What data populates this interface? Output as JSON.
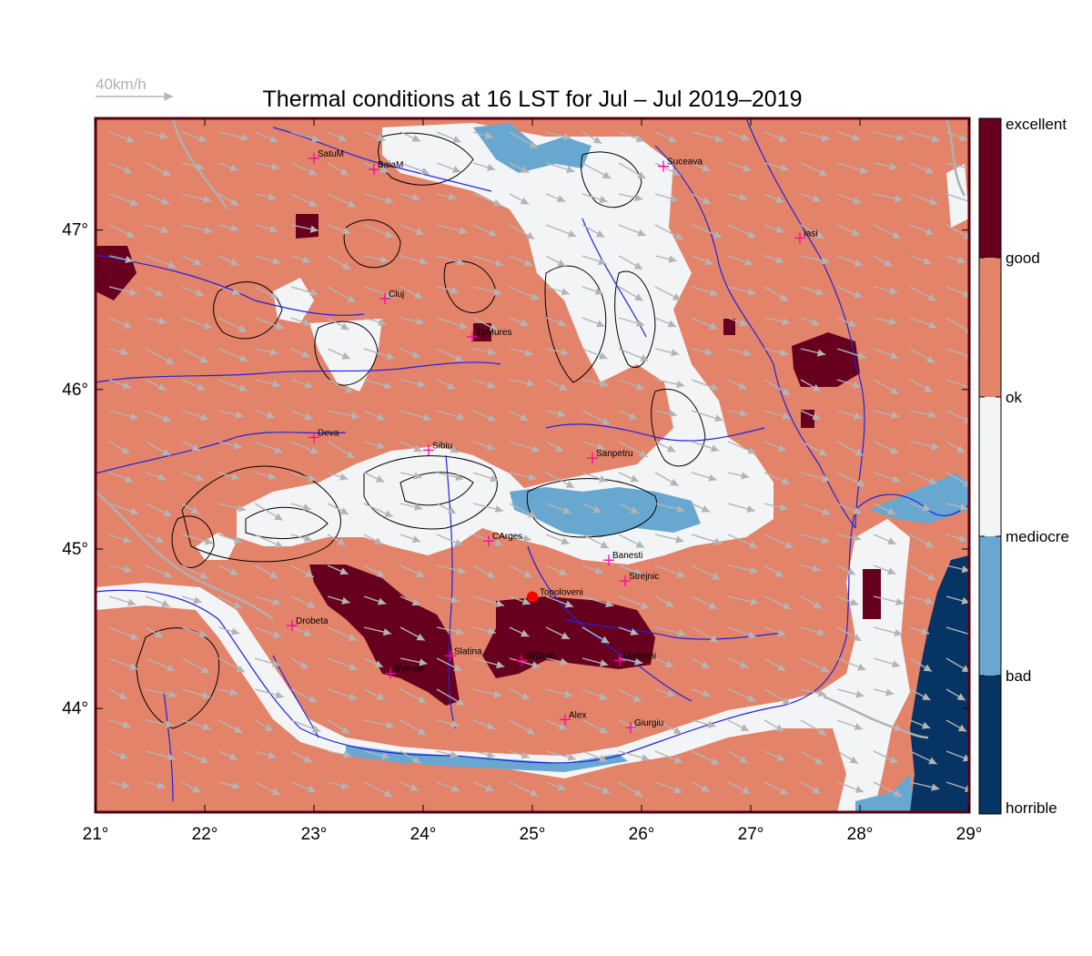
{
  "title": "Thermal conditions at 16 LST for Jul – Jul  2019–2019",
  "wind_scale": {
    "label": "40km/h"
  },
  "colors": {
    "excellent": "#67001f",
    "good": "#e3836a",
    "ok": "#f3f4f6",
    "mediocre": "#68a8d0",
    "horrible": "#063464",
    "rivers": "#2222dd",
    "arrows": "#b4b4b4",
    "frame": "#5a0010",
    "city_marker": "#ff00aa",
    "highlight_point": "#ff0000"
  },
  "x_axis": {
    "ticks": [
      "21°",
      "22°",
      "23°",
      "24°",
      "25°",
      "26°",
      "27°",
      "28°",
      "29°"
    ],
    "range": [
      21,
      29
    ]
  },
  "y_axis": {
    "ticks": [
      "44°",
      "45°",
      "46°",
      "47°"
    ],
    "range": [
      43.35,
      47.7
    ]
  },
  "colorbar": {
    "labels": [
      "excellent",
      "good",
      "ok",
      "mediocre",
      "bad",
      "horrible"
    ]
  },
  "cities": [
    {
      "name": "SatuM",
      "lon": 23.0,
      "lat": 47.45
    },
    {
      "name": "BaiaM",
      "lon": 23.55,
      "lat": 47.38
    },
    {
      "name": "Suceava",
      "lon": 26.2,
      "lat": 47.4
    },
    {
      "name": "Iasi",
      "lon": 27.45,
      "lat": 46.95
    },
    {
      "name": "Cluj",
      "lon": 23.65,
      "lat": 46.57
    },
    {
      "name": "TgMures",
      "lon": 24.45,
      "lat": 46.33
    },
    {
      "name": "Deva",
      "lon": 23.0,
      "lat": 45.7
    },
    {
      "name": "Sibiu",
      "lon": 24.05,
      "lat": 45.62
    },
    {
      "name": "Sanpetru",
      "lon": 25.55,
      "lat": 45.57
    },
    {
      "name": "CArges",
      "lon": 24.6,
      "lat": 45.05
    },
    {
      "name": "Banesti",
      "lon": 25.7,
      "lat": 44.93
    },
    {
      "name": "Strejnic",
      "lon": 25.85,
      "lat": 44.8
    },
    {
      "name": "Drobeta",
      "lon": 22.8,
      "lat": 44.52
    },
    {
      "name": "Slatina",
      "lon": 24.25,
      "lat": 44.33
    },
    {
      "name": "SilGum",
      "lon": 24.9,
      "lat": 44.3
    },
    {
      "name": "Urziceni",
      "lon": 25.8,
      "lat": 44.3
    },
    {
      "name": "BVerde",
      "lon": 23.7,
      "lat": 44.22
    },
    {
      "name": "Alex",
      "lon": 25.3,
      "lat": 43.93
    },
    {
      "name": "Giurgiu",
      "lon": 25.9,
      "lat": 43.88
    }
  ],
  "highlight": {
    "name": "Topoloveni",
    "lon": 25.0,
    "lat": 44.7
  }
}
